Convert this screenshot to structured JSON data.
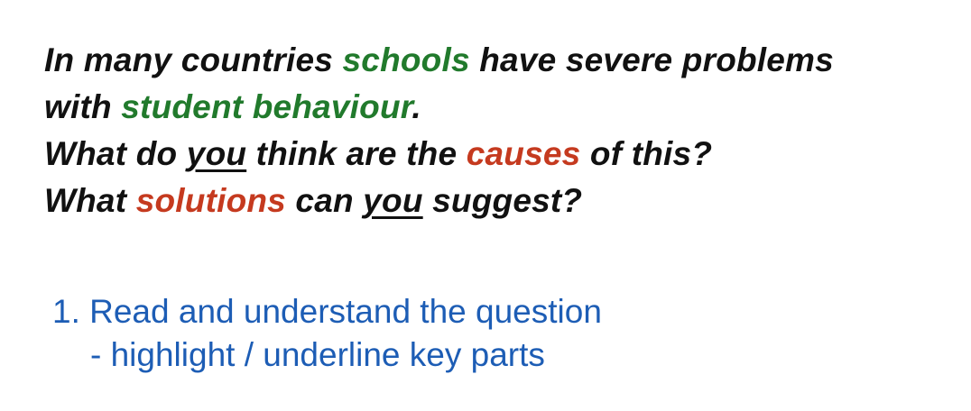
{
  "prompt": {
    "line1": {
      "before": "In many countries ",
      "highlight": "schools",
      "after": " have severe problems"
    },
    "line2": {
      "before": "with ",
      "highlight": "student behaviour",
      "after": "."
    },
    "line3": {
      "before": "What do ",
      "underlined": "you",
      "middle": " think are the ",
      "highlight": "causes",
      "after": " of this?"
    },
    "line4": {
      "before": "What ",
      "highlight": "solutions",
      "middle": " can ",
      "underlined": "you",
      "after": " suggest?"
    }
  },
  "steps": {
    "item1": "1. Read and understand the question",
    "item1_sub": "- highlight / underline key parts"
  },
  "colors": {
    "text": "#111111",
    "green_highlight": "#217a2c",
    "red_highlight": "#c53a1f",
    "steps_blue": "#1d5db5"
  }
}
